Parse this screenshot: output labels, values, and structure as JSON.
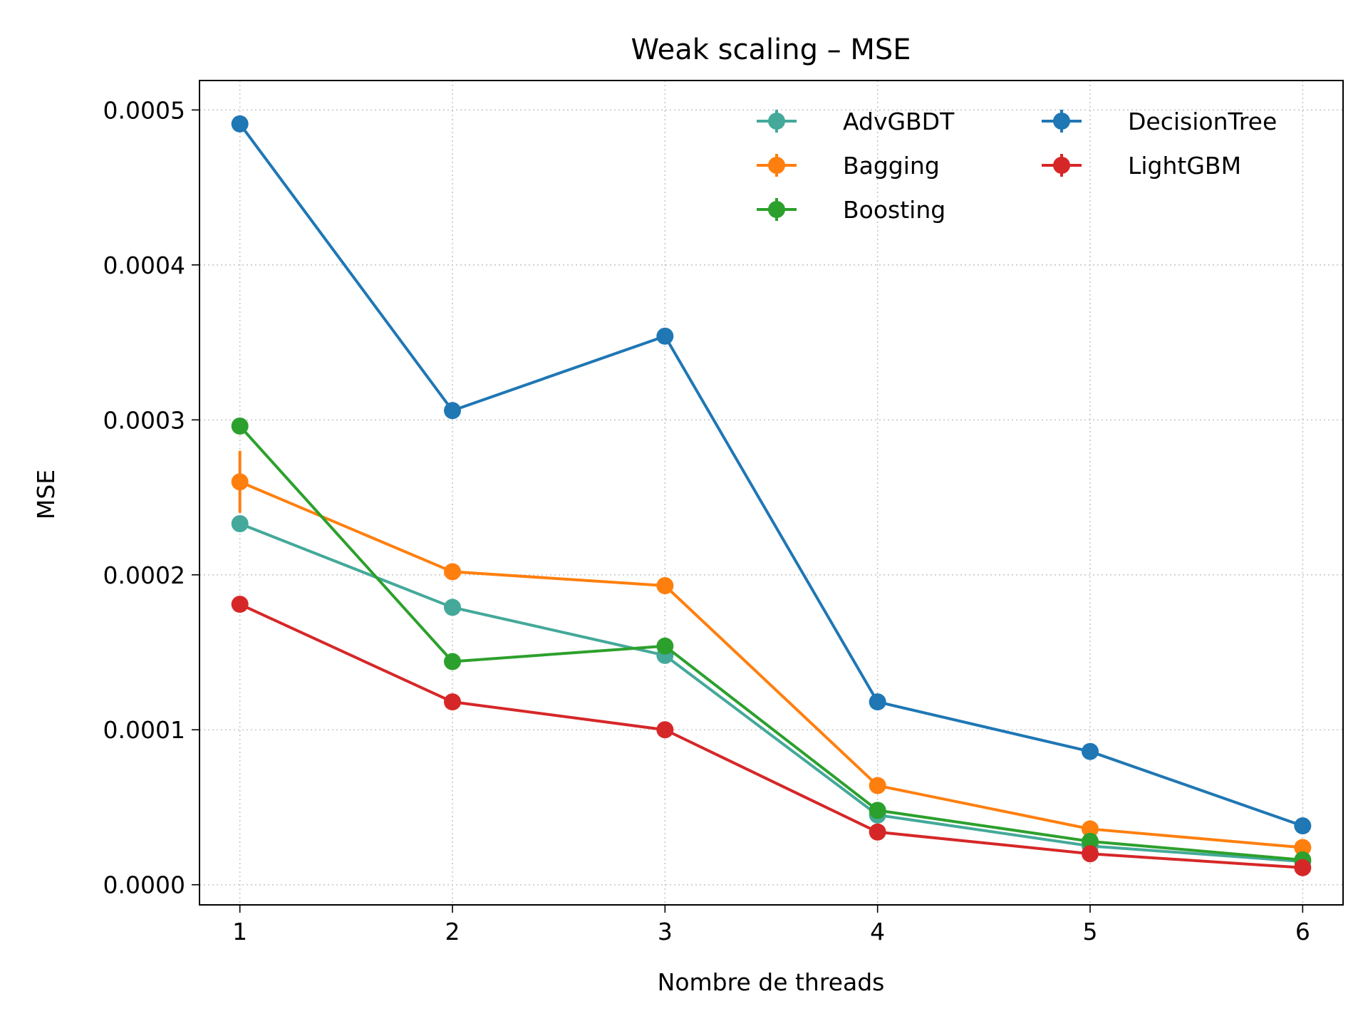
{
  "chart_data": {
    "type": "line",
    "title": "Weak scaling – MSE",
    "xlabel": "Nombre de threads",
    "ylabel": "MSE",
    "x": [
      1,
      2,
      3,
      4,
      5,
      6
    ],
    "xlim": [
      0.81,
      6.19
    ],
    "ylim": [
      -1.3e-05,
      0.000519
    ],
    "y_ticks": [
      0.0,
      0.0001,
      0.0002,
      0.0003,
      0.0004,
      0.0005
    ],
    "y_tick_labels": [
      "0.0000",
      "0.0001",
      "0.0002",
      "0.0003",
      "0.0004",
      "0.0005"
    ],
    "x_tick_labels": [
      "1",
      "2",
      "3",
      "4",
      "5",
      "6"
    ],
    "grid": true,
    "legend": {
      "position": "top-right",
      "columns": 2
    },
    "series": [
      {
        "name": "AdvGBDT",
        "color": "#44a99a",
        "values": [
          0.000233,
          0.000179,
          0.000148,
          4.5e-05,
          2.5e-05,
          1.5e-05
        ],
        "errors": [
          3e-06,
          2e-06,
          2e-06,
          1e-06,
          1e-06,
          1e-06
        ]
      },
      {
        "name": "Bagging",
        "color": "#ff7f0e",
        "values": [
          0.00026,
          0.000202,
          0.000193,
          6.4e-05,
          3.6e-05,
          2.4e-05
        ],
        "errors": [
          2e-05,
          2e-06,
          2e-06,
          1e-06,
          1e-06,
          1e-06
        ]
      },
      {
        "name": "Boosting",
        "color": "#2ca02c",
        "values": [
          0.000296,
          0.000144,
          0.000154,
          4.8e-05,
          2.8e-05,
          1.6e-05
        ],
        "errors": [
          2e-06,
          2e-06,
          2e-06,
          1e-06,
          1e-06,
          1e-06
        ]
      },
      {
        "name": "DecisionTree",
        "color": "#1f77b4",
        "values": [
          0.000491,
          0.000306,
          0.000354,
          0.000118,
          8.6e-05,
          3.8e-05
        ],
        "errors": [
          2e-06,
          2e-06,
          2e-06,
          1e-06,
          1e-06,
          1e-06
        ]
      },
      {
        "name": "LightGBM",
        "color": "#d62728",
        "values": [
          0.000181,
          0.000118,
          0.0001,
          3.4e-05,
          2e-05,
          1.1e-05
        ],
        "errors": [
          2e-06,
          2e-06,
          2e-06,
          1e-06,
          1e-06,
          1e-06
        ]
      }
    ]
  }
}
